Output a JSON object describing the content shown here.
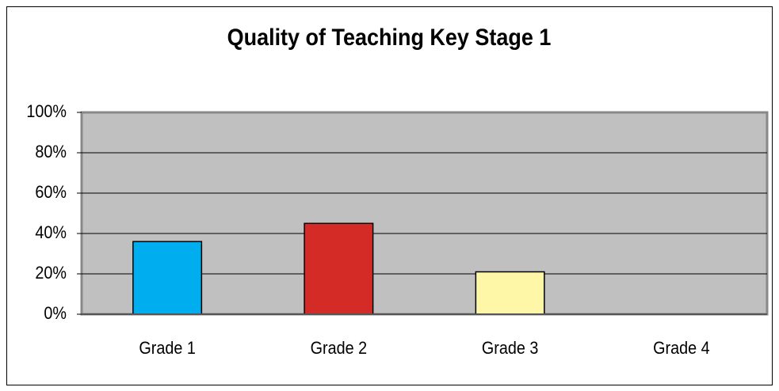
{
  "chart_data": {
    "type": "bar",
    "title": "Quality of Teaching Key Stage 1",
    "categories": [
      "Grade 1",
      "Grade 2",
      "Grade 3",
      "Grade 4"
    ],
    "values": [
      36,
      45,
      21,
      0
    ],
    "colors": [
      "#00aeef",
      "#d52b27",
      "#fff7a8",
      "#c0c0c0"
    ],
    "ylim": [
      0,
      100
    ],
    "yticks": [
      {
        "value": 0,
        "label": "0%"
      },
      {
        "value": 20,
        "label": "20%"
      },
      {
        "value": 40,
        "label": "40%"
      },
      {
        "value": 60,
        "label": "60%"
      },
      {
        "value": 80,
        "label": "80%"
      },
      {
        "value": 100,
        "label": "100%"
      }
    ],
    "grid": true
  }
}
